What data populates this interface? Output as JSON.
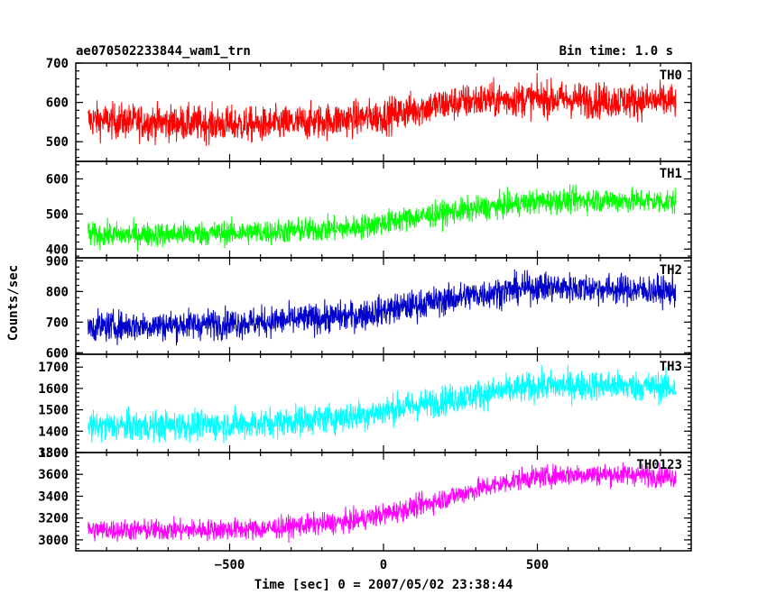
{
  "header": {
    "title": "ae070502233844_wam1_trn",
    "bin_time": "Bin time: 1.0 s"
  },
  "axes": {
    "xlabel": "Time [sec] 0 = 2007/05/02 23:38:44",
    "ylabel": "Counts/sec"
  },
  "chart_data": {
    "type": "line",
    "title": "ae070502233844_wam1_trn",
    "xlabel": "Time [sec] 0 = 2007/05/02 23:38:44",
    "ylabel": "Counts/sec",
    "xlim": [
      -1000,
      1000
    ],
    "xticks": [
      -500,
      0,
      500
    ],
    "grid": false,
    "panels": [
      {
        "name": "TH0",
        "color": "#ff0000",
        "ylim": [
          450,
          700
        ],
        "yticks": [
          500,
          600,
          700
        ],
        "trend": [
          [
            -960,
            555
          ],
          [
            -700,
            548
          ],
          [
            -400,
            542
          ],
          [
            -200,
            552
          ],
          [
            0,
            565
          ],
          [
            150,
            590
          ],
          [
            300,
            605
          ],
          [
            500,
            610
          ],
          [
            700,
            605
          ],
          [
            950,
            603
          ]
        ],
        "noise": 32
      },
      {
        "name": "TH1",
        "color": "#00ff00",
        "ylim": [
          375,
          650
        ],
        "yticks": [
          400,
          500,
          600
        ],
        "trend": [
          [
            -960,
            440
          ],
          [
            -700,
            442
          ],
          [
            -400,
            448
          ],
          [
            -100,
            460
          ],
          [
            100,
            490
          ],
          [
            300,
            515
          ],
          [
            500,
            535
          ],
          [
            700,
            540
          ],
          [
            950,
            535
          ]
        ],
        "noise": 25
      },
      {
        "name": "TH2",
        "color": "#0000cc",
        "ylim": [
          595,
          910
        ],
        "yticks": [
          600,
          700,
          800,
          900
        ],
        "trend": [
          [
            -960,
            685
          ],
          [
            -700,
            690
          ],
          [
            -400,
            700
          ],
          [
            -100,
            720
          ],
          [
            100,
            755
          ],
          [
            300,
            790
          ],
          [
            500,
            815
          ],
          [
            700,
            810
          ],
          [
            950,
            800
          ]
        ],
        "noise": 35
      },
      {
        "name": "TH3",
        "color": "#00ffff",
        "ylim": [
          1300,
          1760
        ],
        "yticks": [
          1300,
          1400,
          1500,
          1600,
          1700
        ],
        "trend": [
          [
            -960,
            1420
          ],
          [
            -700,
            1425
          ],
          [
            -400,
            1435
          ],
          [
            -100,
            1470
          ],
          [
            100,
            1520
          ],
          [
            300,
            1570
          ],
          [
            500,
            1610
          ],
          [
            700,
            1615
          ],
          [
            950,
            1605
          ]
        ],
        "noise": 50
      },
      {
        "name": "TH0123",
        "color": "#ff00ff",
        "ylim": [
          2900,
          3800
        ],
        "yticks": [
          3000,
          3200,
          3400,
          3600,
          3800
        ],
        "trend": [
          [
            -960,
            3090
          ],
          [
            -700,
            3090
          ],
          [
            -400,
            3100
          ],
          [
            -100,
            3170
          ],
          [
            100,
            3300
          ],
          [
            300,
            3460
          ],
          [
            450,
            3560
          ],
          [
            600,
            3600
          ],
          [
            800,
            3600
          ],
          [
            950,
            3580
          ]
        ],
        "noise": 70
      }
    ]
  }
}
